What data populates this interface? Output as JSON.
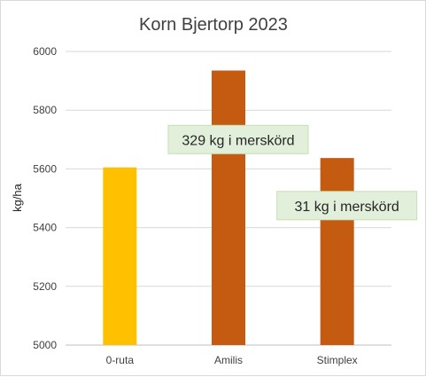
{
  "chart_data": {
    "type": "bar",
    "title": "Korn Bjertorp 2023",
    "xlabel": "",
    "ylabel": "kg/ha",
    "categories": [
      "0-ruta",
      "Amilis",
      "Stimplex"
    ],
    "values": [
      5605,
      5935,
      5637
    ],
    "colors": [
      "#ffc000",
      "#c55a11",
      "#c55a11"
    ],
    "ylim": [
      5000,
      6000
    ],
    "yticks": [
      "5000",
      "5200",
      "5400",
      "5600",
      "5800",
      "6000"
    ],
    "grid": true,
    "legend": "none",
    "annotations": [
      {
        "text": "329 kg i merskörd",
        "category": "Amilis",
        "value": 5700
      },
      {
        "text": "31 kg i merskörd",
        "category": "Stimplex",
        "value": 5475
      }
    ],
    "annotation_fill": "#e2efda",
    "annotation_border": "#c5e0b4"
  }
}
